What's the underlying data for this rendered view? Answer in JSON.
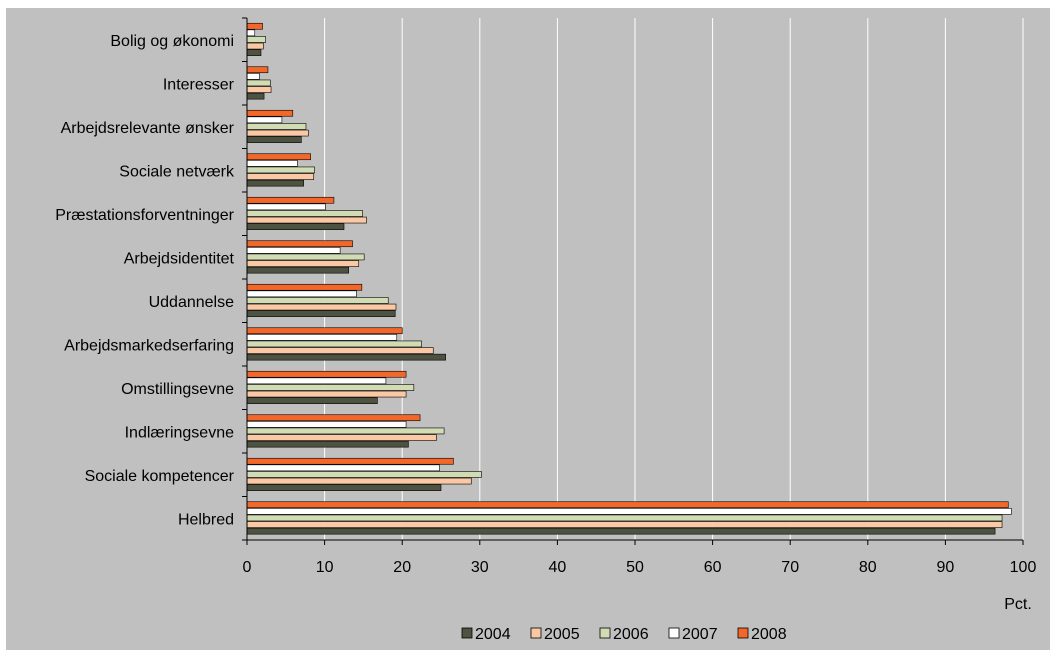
{
  "chart_data": {
    "type": "bar",
    "orientation": "horizontal",
    "categories": [
      "Bolig og økonomi",
      "Interesser",
      "Arbejdsrelevante ønsker",
      "Sociale netværk",
      "Præstationsforventninger",
      "Arbejdsidentitet",
      "Uddannelse",
      "Arbejdsmarkedserfaring",
      "Omstillingsevne",
      "Indlæringsevne",
      "Sociale kompetencer",
      "Helbred"
    ],
    "series": [
      {
        "name": "2004",
        "color": "#4d5340",
        "values": [
          1.8,
          2.2,
          7.0,
          7.3,
          12.5,
          13.1,
          19.1,
          25.6,
          16.8,
          20.8,
          25.0,
          96.4
        ]
      },
      {
        "name": "2005",
        "color": "#fac8a4",
        "values": [
          2.1,
          3.1,
          7.9,
          8.6,
          15.4,
          14.4,
          19.2,
          24.0,
          20.5,
          24.4,
          28.9,
          97.3
        ]
      },
      {
        "name": "2006",
        "color": "#d2dcb4",
        "values": [
          2.4,
          3.0,
          7.6,
          8.7,
          14.9,
          15.1,
          18.2,
          22.5,
          21.5,
          25.4,
          30.2,
          97.3
        ]
      },
      {
        "name": "2007",
        "color": "#ffffff",
        "values": [
          1.0,
          1.6,
          4.5,
          6.5,
          10.1,
          12.0,
          14.1,
          19.3,
          17.9,
          20.5,
          24.8,
          98.5
        ]
      },
      {
        "name": "2008",
        "color": "#f2682a",
        "values": [
          2.0,
          2.7,
          5.9,
          8.2,
          11.2,
          13.6,
          14.8,
          20.0,
          20.5,
          22.3,
          26.6,
          98.1
        ]
      }
    ],
    "xlim": [
      0,
      100
    ],
    "xticks": [
      "0",
      "10",
      "20",
      "30",
      "40",
      "50",
      "60",
      "70",
      "80",
      "90",
      "100"
    ],
    "xlabel": "Pct.",
    "grid": "vertical",
    "legend_position": "bottom",
    "colors": {
      "background": "#c0c0c0",
      "gridline": "#ffffff",
      "axis": "#000000"
    }
  }
}
